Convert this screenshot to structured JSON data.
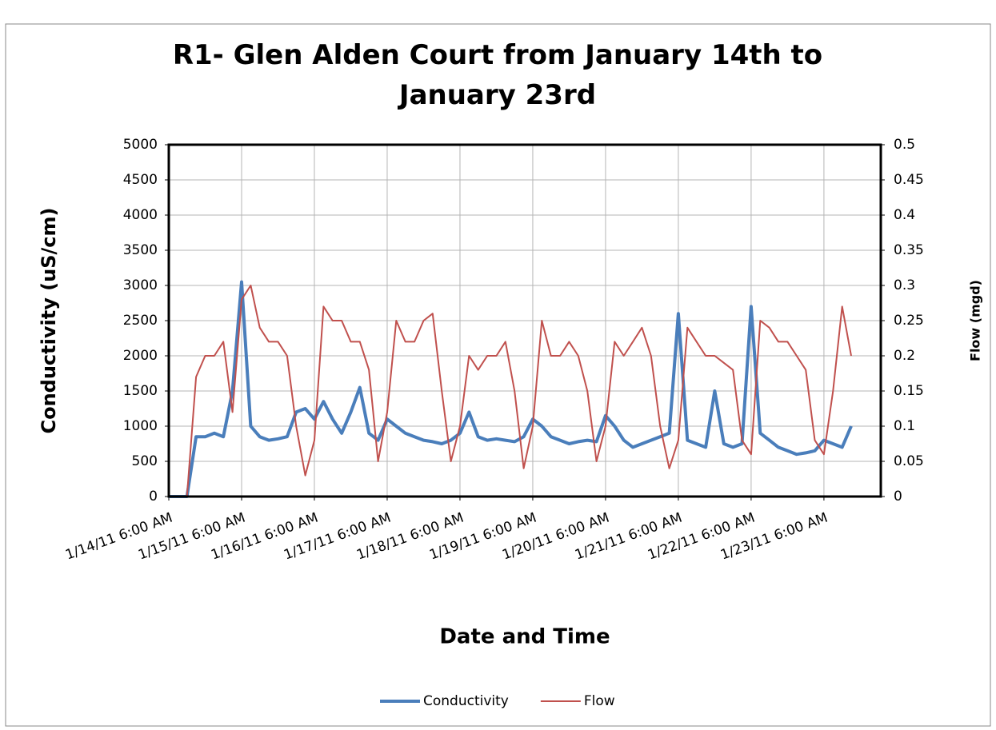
{
  "chart_data": {
    "type": "line",
    "title": "R1- Glen Alden Court from January 14th to January 23rd",
    "x_label": "Date and Time",
    "y_label": "Conductivity (uS/cm)",
    "y2_label": "Flow (mgd)",
    "categories": [
      "1/14/11 6:00 AM",
      null,
      null,
      null,
      null,
      null,
      null,
      null,
      "1/15/11 6:00 AM",
      null,
      null,
      null,
      null,
      null,
      null,
      null,
      "1/16/11 6:00 AM",
      null,
      null,
      null,
      null,
      null,
      null,
      null,
      "1/17/11 6:00 AM",
      null,
      null,
      null,
      null,
      null,
      null,
      null,
      "1/18/11 6:00 AM",
      null,
      null,
      null,
      null,
      null,
      null,
      null,
      "1/19/11 6:00 AM",
      null,
      null,
      null,
      null,
      null,
      null,
      null,
      "1/20/11 6:00 AM",
      null,
      null,
      null,
      null,
      null,
      null,
      null,
      "1/21/11 6:00 AM",
      null,
      null,
      null,
      null,
      null,
      null,
      null,
      "1/22/11 6:00 AM",
      null,
      null,
      null,
      null,
      null,
      null,
      null,
      "1/23/11 6:00 AM",
      null,
      null,
      null
    ],
    "series": [
      {
        "name": "Conductivity",
        "color": "#4a7ebb",
        "axis": "y",
        "values": [
          0,
          0,
          0,
          850,
          850,
          900,
          850,
          1500,
          3050,
          1000,
          850,
          800,
          820,
          850,
          1200,
          1250,
          1100,
          1350,
          1100,
          900,
          1200,
          1550,
          900,
          800,
          1100,
          1000,
          900,
          850,
          800,
          780,
          750,
          800,
          900,
          1200,
          850,
          800,
          820,
          800,
          780,
          850,
          1100,
          1000,
          850,
          800,
          750,
          780,
          800,
          780,
          1150,
          1000,
          800,
          700,
          750,
          800,
          850,
          900,
          2600,
          800,
          750,
          700,
          1500,
          750,
          700,
          750,
          2700,
          900,
          800,
          700,
          650,
          600,
          620,
          650,
          800,
          750,
          700,
          1000
        ]
      },
      {
        "name": "Flow",
        "color": "#c0504d",
        "axis": "y2",
        "values": [
          0,
          0,
          0,
          0.17,
          0.2,
          0.2,
          0.22,
          0.12,
          0.28,
          0.3,
          0.24,
          0.22,
          0.22,
          0.2,
          0.1,
          0.03,
          0.08,
          0.27,
          0.25,
          0.25,
          0.22,
          0.22,
          0.18,
          0.05,
          0.12,
          0.25,
          0.22,
          0.22,
          0.25,
          0.26,
          0.15,
          0.05,
          0.1,
          0.2,
          0.18,
          0.2,
          0.2,
          0.22,
          0.15,
          0.04,
          0.1,
          0.25,
          0.2,
          0.2,
          0.22,
          0.2,
          0.15,
          0.05,
          0.1,
          0.22,
          0.2,
          0.22,
          0.24,
          0.2,
          0.1,
          0.04,
          0.08,
          0.24,
          0.22,
          0.2,
          0.2,
          0.19,
          0.18,
          0.08,
          0.06,
          0.25,
          0.24,
          0.22,
          0.22,
          0.2,
          0.18,
          0.08,
          0.06,
          0.15,
          0.27,
          0.2
        ]
      }
    ],
    "ylim": [
      0,
      5000
    ],
    "yticks": [
      0,
      500,
      1000,
      1500,
      2000,
      2500,
      3000,
      3500,
      4000,
      4500,
      5000
    ],
    "y2lim": [
      0,
      0.5
    ],
    "y2ticks": [
      0,
      0.05,
      0.1,
      0.15,
      0.2,
      0.25,
      0.3,
      0.35,
      0.4,
      0.45,
      0.5
    ],
    "grid": true,
    "legend": "bottom"
  }
}
